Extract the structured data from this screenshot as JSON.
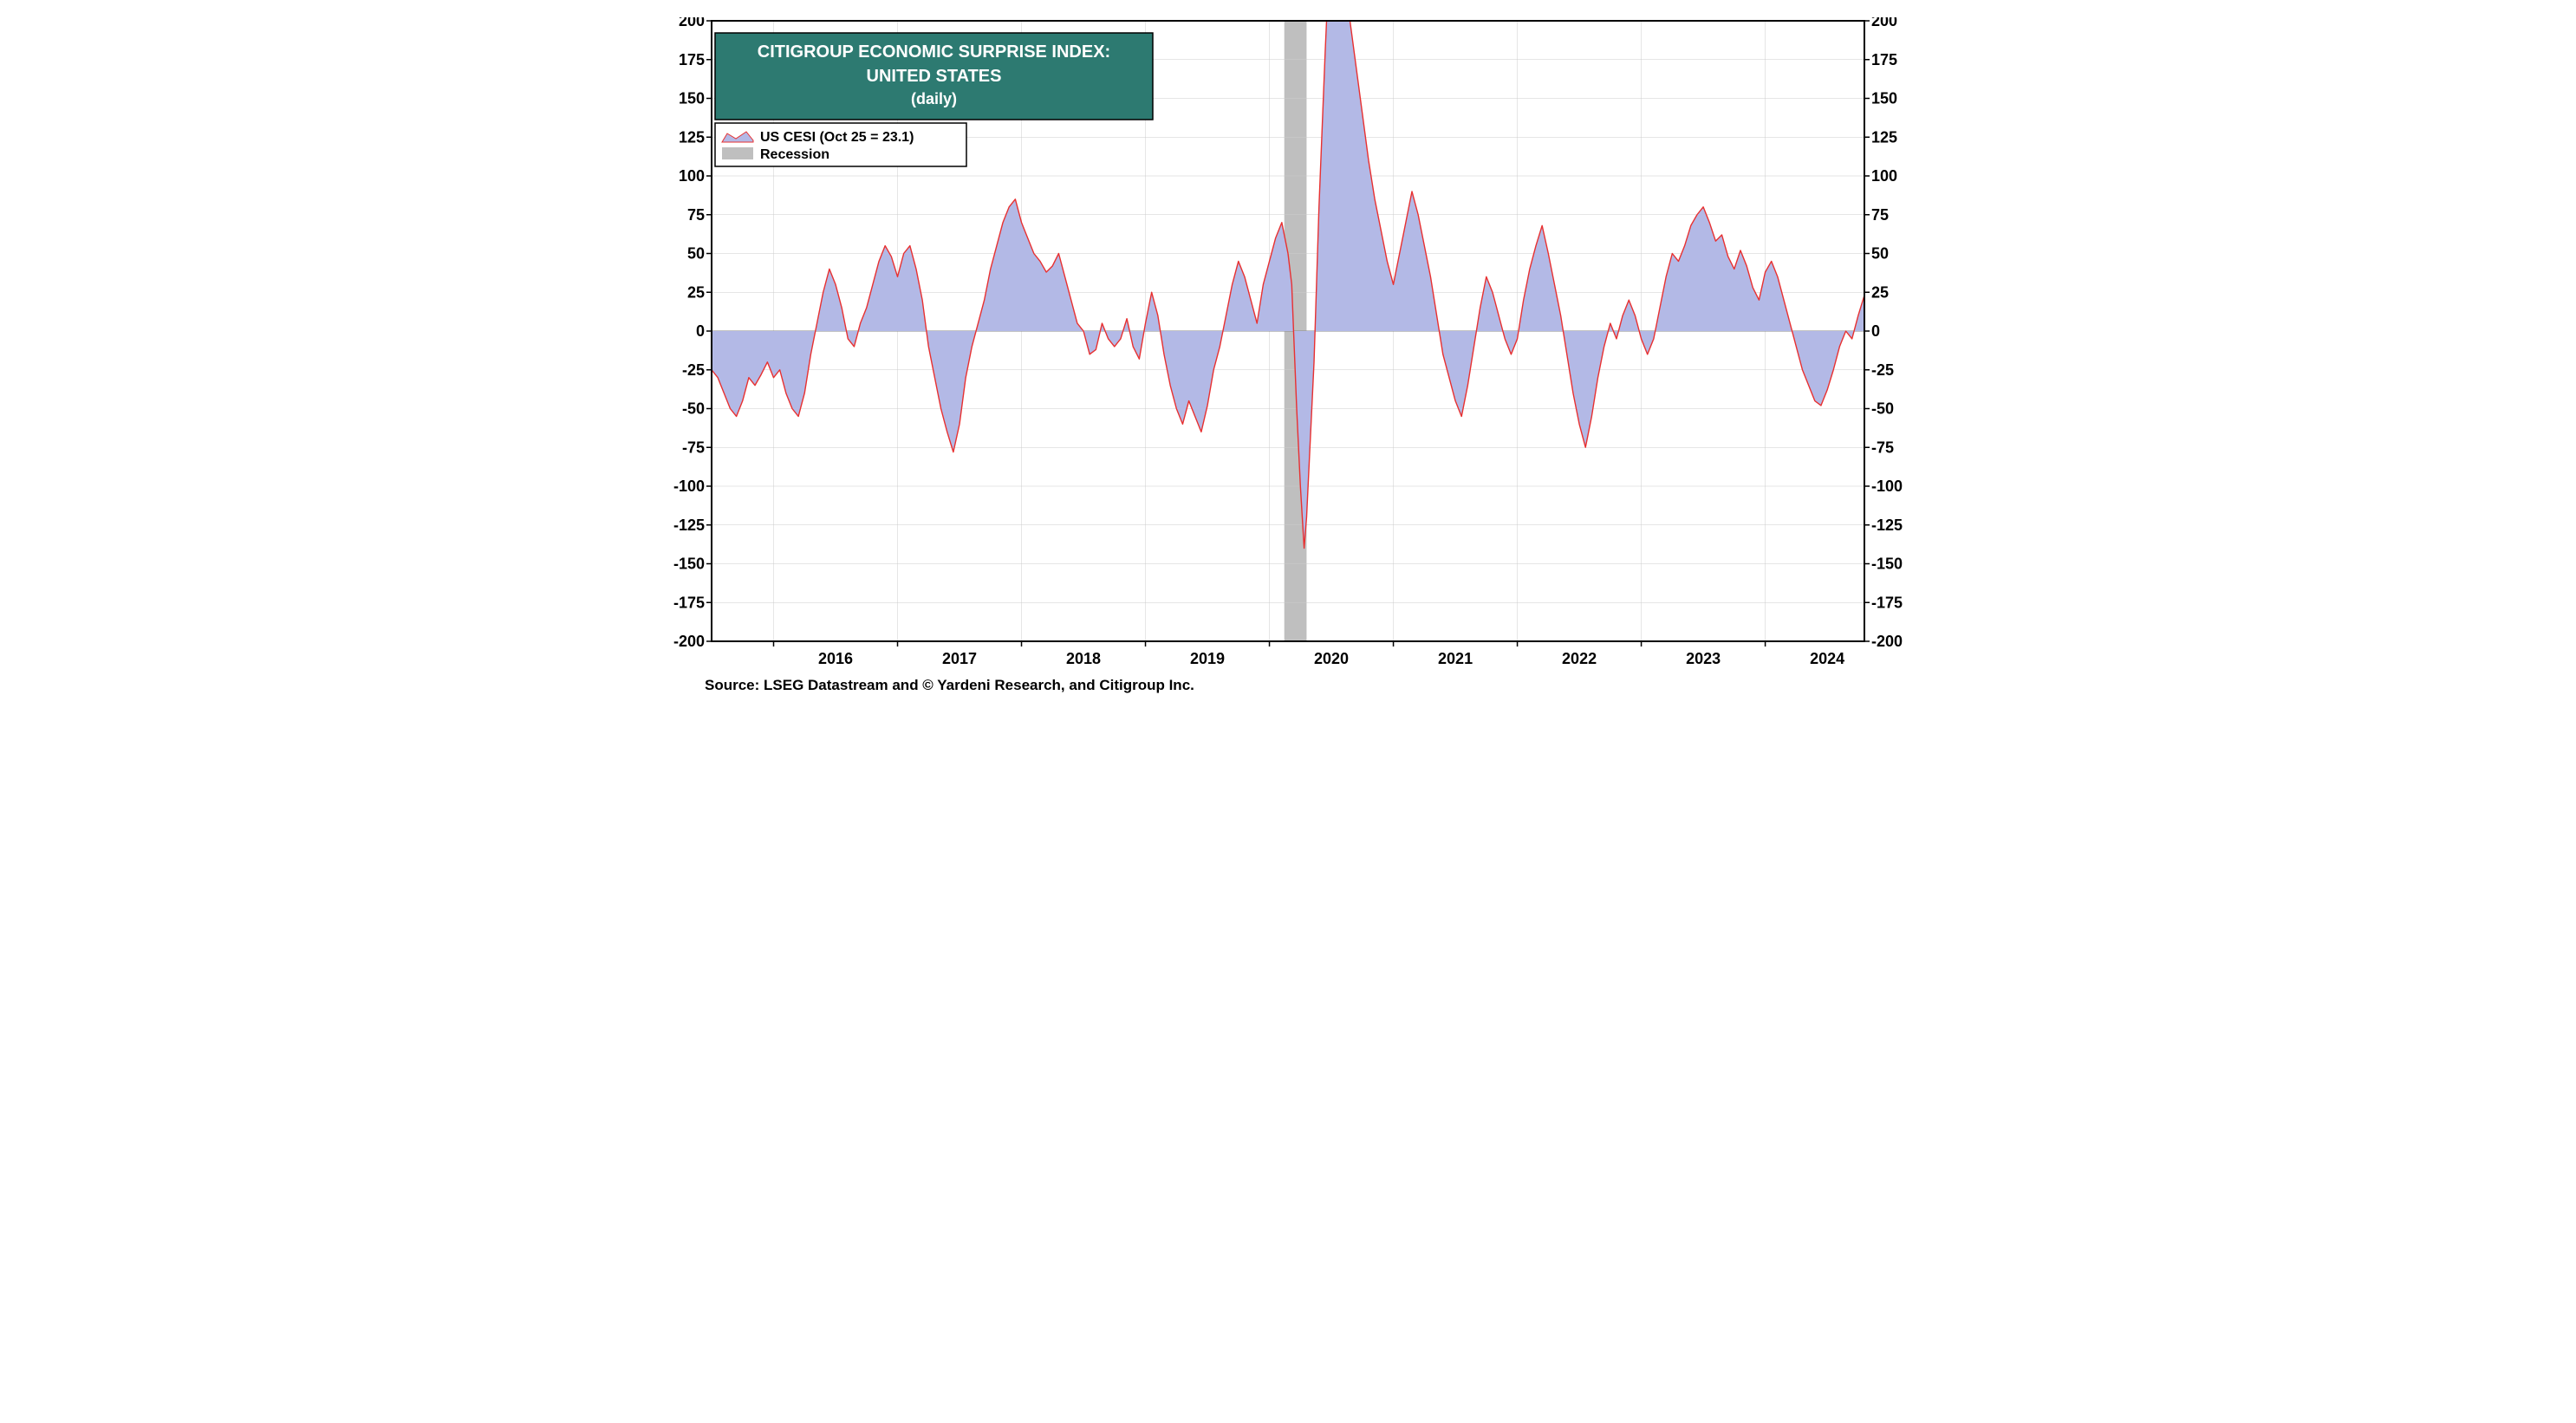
{
  "chart": {
    "type": "area",
    "title_line1": "CITIGROUP ECONOMIC SURPRISE INDEX:",
    "title_line2": "UNITED STATES",
    "title_line3": "(daily)",
    "title_bg_color": "#2d7a71",
    "title_text_color": "#ffffff",
    "title_fontsize_main": 20,
    "title_fontsize_sub": 18,
    "legend_series_label": "US CESI (Oct 25 = 23.1)",
    "legend_recession_label": "Recession",
    "legend_border_color": "#000000",
    "legend_bg_color": "#ffffff",
    "source_text": "Source: LSEG Datastream and © Yardeni Research, and Citigroup Inc.",
    "plot_bg_color": "#ffffff",
    "border_color": "#000000",
    "border_width": 2,
    "grid_color": "#cccccc",
    "grid_width": 0.5,
    "zero_line_color": "#888888",
    "zero_line_width": 1,
    "area_fill_color": "#b3b9e6",
    "line_color": "#e83030",
    "line_width": 1.4,
    "recession_fill_color": "#bfbfbf",
    "y_axis": {
      "min": -200,
      "max": 200,
      "tick_step": 25,
      "ticks": [
        -200,
        -175,
        -150,
        -125,
        -100,
        -75,
        -50,
        -25,
        0,
        25,
        50,
        75,
        100,
        125,
        150,
        175,
        200
      ]
    },
    "x_axis": {
      "start_year": 2015.5,
      "end_year": 2024.8,
      "tick_years": [
        2016,
        2017,
        2018,
        2019,
        2020,
        2021,
        2022,
        2023,
        2024
      ]
    },
    "recession_band": {
      "start": 2020.12,
      "end": 2020.3
    },
    "series": [
      [
        2015.5,
        -25
      ],
      [
        2015.55,
        -30
      ],
      [
        2015.6,
        -40
      ],
      [
        2015.65,
        -50
      ],
      [
        2015.7,
        -55
      ],
      [
        2015.75,
        -45
      ],
      [
        2015.8,
        -30
      ],
      [
        2015.85,
        -35
      ],
      [
        2015.9,
        -28
      ],
      [
        2015.95,
        -20
      ],
      [
        2016.0,
        -30
      ],
      [
        2016.05,
        -25
      ],
      [
        2016.1,
        -40
      ],
      [
        2016.15,
        -50
      ],
      [
        2016.2,
        -55
      ],
      [
        2016.25,
        -40
      ],
      [
        2016.3,
        -15
      ],
      [
        2016.35,
        5
      ],
      [
        2016.4,
        25
      ],
      [
        2016.45,
        40
      ],
      [
        2016.5,
        30
      ],
      [
        2016.55,
        15
      ],
      [
        2016.6,
        -5
      ],
      [
        2016.65,
        -10
      ],
      [
        2016.7,
        5
      ],
      [
        2016.75,
        15
      ],
      [
        2016.8,
        30
      ],
      [
        2016.85,
        45
      ],
      [
        2016.9,
        55
      ],
      [
        2016.95,
        48
      ],
      [
        2017.0,
        35
      ],
      [
        2017.05,
        50
      ],
      [
        2017.1,
        55
      ],
      [
        2017.15,
        40
      ],
      [
        2017.2,
        20
      ],
      [
        2017.25,
        -10
      ],
      [
        2017.3,
        -30
      ],
      [
        2017.35,
        -50
      ],
      [
        2017.4,
        -65
      ],
      [
        2017.45,
        -78
      ],
      [
        2017.5,
        -60
      ],
      [
        2017.55,
        -30
      ],
      [
        2017.6,
        -10
      ],
      [
        2017.65,
        5
      ],
      [
        2017.7,
        20
      ],
      [
        2017.75,
        40
      ],
      [
        2017.8,
        55
      ],
      [
        2017.85,
        70
      ],
      [
        2017.9,
        80
      ],
      [
        2017.95,
        85
      ],
      [
        2018.0,
        70
      ],
      [
        2018.05,
        60
      ],
      [
        2018.1,
        50
      ],
      [
        2018.15,
        45
      ],
      [
        2018.2,
        38
      ],
      [
        2018.25,
        42
      ],
      [
        2018.3,
        50
      ],
      [
        2018.35,
        35
      ],
      [
        2018.4,
        20
      ],
      [
        2018.45,
        5
      ],
      [
        2018.5,
        0
      ],
      [
        2018.55,
        -15
      ],
      [
        2018.6,
        -12
      ],
      [
        2018.65,
        5
      ],
      [
        2018.7,
        -5
      ],
      [
        2018.75,
        -10
      ],
      [
        2018.8,
        -5
      ],
      [
        2018.85,
        8
      ],
      [
        2018.9,
        -10
      ],
      [
        2018.95,
        -18
      ],
      [
        2019.0,
        5
      ],
      [
        2019.05,
        25
      ],
      [
        2019.1,
        10
      ],
      [
        2019.15,
        -15
      ],
      [
        2019.2,
        -35
      ],
      [
        2019.25,
        -50
      ],
      [
        2019.3,
        -60
      ],
      [
        2019.35,
        -45
      ],
      [
        2019.4,
        -55
      ],
      [
        2019.45,
        -65
      ],
      [
        2019.5,
        -48
      ],
      [
        2019.55,
        -25
      ],
      [
        2019.6,
        -10
      ],
      [
        2019.65,
        10
      ],
      [
        2019.7,
        30
      ],
      [
        2019.75,
        45
      ],
      [
        2019.8,
        35
      ],
      [
        2019.85,
        20
      ],
      [
        2019.9,
        5
      ],
      [
        2019.95,
        30
      ],
      [
        2020.0,
        45
      ],
      [
        2020.05,
        60
      ],
      [
        2020.1,
        70
      ],
      [
        2020.15,
        50
      ],
      [
        2020.18,
        30
      ],
      [
        2020.2,
        -10
      ],
      [
        2020.22,
        -50
      ],
      [
        2020.25,
        -100
      ],
      [
        2020.28,
        -140
      ],
      [
        2020.3,
        -120
      ],
      [
        2020.33,
        -70
      ],
      [
        2020.36,
        -20
      ],
      [
        2020.4,
        80
      ],
      [
        2020.45,
        180
      ],
      [
        2020.5,
        270
      ],
      [
        2020.55,
        250
      ],
      [
        2020.6,
        230
      ],
      [
        2020.65,
        200
      ],
      [
        2020.7,
        170
      ],
      [
        2020.75,
        140
      ],
      [
        2020.8,
        110
      ],
      [
        2020.85,
        85
      ],
      [
        2020.9,
        65
      ],
      [
        2020.95,
        45
      ],
      [
        2021.0,
        30
      ],
      [
        2021.05,
        50
      ],
      [
        2021.1,
        70
      ],
      [
        2021.15,
        90
      ],
      [
        2021.2,
        75
      ],
      [
        2021.25,
        55
      ],
      [
        2021.3,
        35
      ],
      [
        2021.35,
        10
      ],
      [
        2021.4,
        -15
      ],
      [
        2021.45,
        -30
      ],
      [
        2021.5,
        -45
      ],
      [
        2021.55,
        -55
      ],
      [
        2021.6,
        -35
      ],
      [
        2021.65,
        -10
      ],
      [
        2021.7,
        15
      ],
      [
        2021.75,
        35
      ],
      [
        2021.8,
        25
      ],
      [
        2021.85,
        10
      ],
      [
        2021.9,
        -5
      ],
      [
        2021.95,
        -15
      ],
      [
        2022.0,
        -5
      ],
      [
        2022.05,
        20
      ],
      [
        2022.1,
        40
      ],
      [
        2022.15,
        55
      ],
      [
        2022.2,
        68
      ],
      [
        2022.25,
        50
      ],
      [
        2022.3,
        30
      ],
      [
        2022.35,
        10
      ],
      [
        2022.4,
        -15
      ],
      [
        2022.45,
        -40
      ],
      [
        2022.5,
        -60
      ],
      [
        2022.55,
        -75
      ],
      [
        2022.6,
        -55
      ],
      [
        2022.65,
        -30
      ],
      [
        2022.7,
        -10
      ],
      [
        2022.75,
        5
      ],
      [
        2022.8,
        -5
      ],
      [
        2022.85,
        10
      ],
      [
        2022.9,
        20
      ],
      [
        2022.95,
        10
      ],
      [
        2023.0,
        -5
      ],
      [
        2023.05,
        -15
      ],
      [
        2023.1,
        -5
      ],
      [
        2023.15,
        15
      ],
      [
        2023.2,
        35
      ],
      [
        2023.25,
        50
      ],
      [
        2023.3,
        45
      ],
      [
        2023.35,
        55
      ],
      [
        2023.4,
        68
      ],
      [
        2023.45,
        75
      ],
      [
        2023.5,
        80
      ],
      [
        2023.55,
        70
      ],
      [
        2023.6,
        58
      ],
      [
        2023.65,
        62
      ],
      [
        2023.7,
        48
      ],
      [
        2023.75,
        40
      ],
      [
        2023.8,
        52
      ],
      [
        2023.85,
        42
      ],
      [
        2023.9,
        28
      ],
      [
        2023.95,
        20
      ],
      [
        2024.0,
        38
      ],
      [
        2024.05,
        45
      ],
      [
        2024.1,
        35
      ],
      [
        2024.15,
        20
      ],
      [
        2024.2,
        5
      ],
      [
        2024.25,
        -10
      ],
      [
        2024.3,
        -25
      ],
      [
        2024.35,
        -35
      ],
      [
        2024.4,
        -45
      ],
      [
        2024.45,
        -48
      ],
      [
        2024.5,
        -38
      ],
      [
        2024.55,
        -25
      ],
      [
        2024.6,
        -10
      ],
      [
        2024.65,
        0
      ],
      [
        2024.7,
        -5
      ],
      [
        2024.75,
        10
      ],
      [
        2024.8,
        23.1
      ]
    ]
  }
}
